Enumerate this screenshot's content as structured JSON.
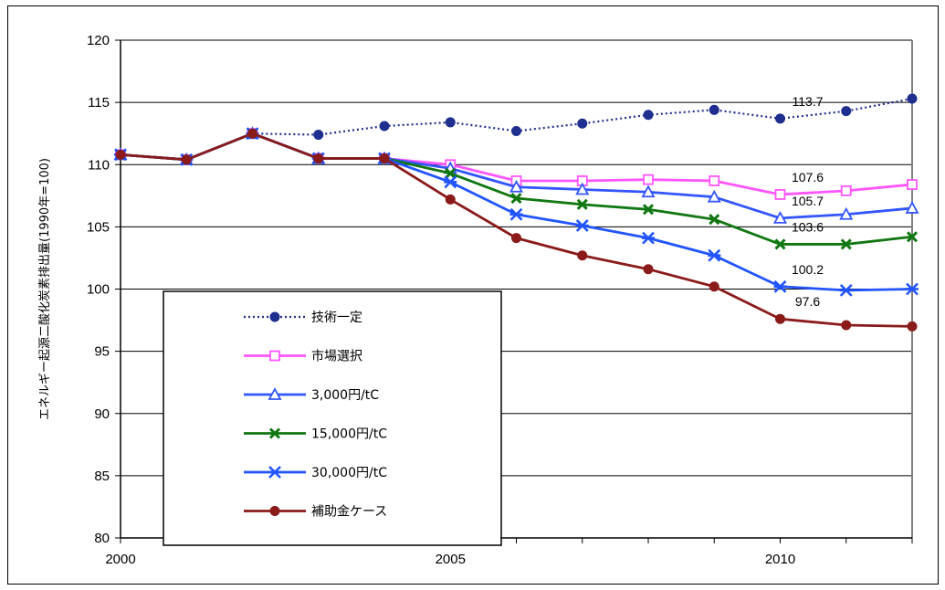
{
  "chart_data": {
    "type": "line",
    "title": "",
    "xlabel": "",
    "ylabel": "エネルギー起源二酸化炭素排出量(1990年=100)",
    "x": [
      2000,
      2001,
      2002,
      2003,
      2004,
      2005,
      2006,
      2007,
      2008,
      2009,
      2010,
      2011,
      2012
    ],
    "xticks": [
      "2000",
      "2005",
      "2010"
    ],
    "yticks": [
      "80",
      "85",
      "90",
      "95",
      "100",
      "105",
      "110",
      "115",
      "120"
    ],
    "ylim": [
      80,
      120
    ],
    "xlim": [
      2000,
      2012
    ],
    "grid": "horizontal",
    "legend_position": "lower-left",
    "series": [
      {
        "name": "技術一定",
        "color": "#1f2f8f",
        "marker": "circle-filled",
        "dash": "dotted",
        "values": [
          110.8,
          110.4,
          112.5,
          112.4,
          113.1,
          113.4,
          112.7,
          113.3,
          114.0,
          114.4,
          113.7,
          114.3,
          115.3
        ]
      },
      {
        "name": "市場選択",
        "color": "#ff55ff",
        "marker": "square-open",
        "dash": "solid",
        "values": [
          110.8,
          110.4,
          112.5,
          110.5,
          110.5,
          110.0,
          108.7,
          108.7,
          108.8,
          108.7,
          107.6,
          107.9,
          108.4
        ]
      },
      {
        "name": "3,000円/tC",
        "color": "#3355ff",
        "marker": "triangle-open",
        "dash": "solid",
        "values": [
          110.8,
          110.4,
          112.5,
          110.5,
          110.5,
          109.7,
          108.2,
          108.0,
          107.8,
          107.4,
          105.7,
          106.0,
          106.5
        ]
      },
      {
        "name": "15,000円/tC",
        "color": "#117711",
        "marker": "x",
        "dash": "solid",
        "values": [
          110.8,
          110.4,
          112.5,
          110.5,
          110.5,
          109.3,
          107.3,
          106.8,
          106.4,
          105.6,
          103.6,
          103.6,
          104.2
        ]
      },
      {
        "name": "30,000円/tC",
        "color": "#2255ff",
        "marker": "asterisk",
        "dash": "solid",
        "values": [
          110.8,
          110.4,
          112.5,
          110.5,
          110.5,
          108.6,
          106.0,
          105.1,
          104.1,
          102.7,
          100.2,
          99.9,
          100.0
        ]
      },
      {
        "name": "補助金ケース",
        "color": "#8b1a1a",
        "marker": "circle-filled",
        "dash": "solid",
        "values": [
          110.8,
          110.4,
          112.5,
          110.5,
          110.5,
          107.2,
          104.1,
          102.7,
          101.6,
          100.2,
          97.6,
          97.1,
          97.0
        ]
      }
    ],
    "annotations": [
      {
        "text": "113.7",
        "x": 2010,
        "y": 113.7,
        "series": "技術一定"
      },
      {
        "text": "107.6",
        "x": 2010,
        "y": 107.6,
        "series": "市場選択"
      },
      {
        "text": "105.7",
        "x": 2010,
        "y": 105.7,
        "series": "3,000円/tC"
      },
      {
        "text": "103.6",
        "x": 2010,
        "y": 103.6,
        "series": "15,000円/tC"
      },
      {
        "text": "100.2",
        "x": 2010,
        "y": 100.2,
        "series": "30,000円/tC"
      },
      {
        "text": "97.6",
        "x": 2010,
        "y": 97.6,
        "series": "補助金ケース"
      }
    ]
  }
}
